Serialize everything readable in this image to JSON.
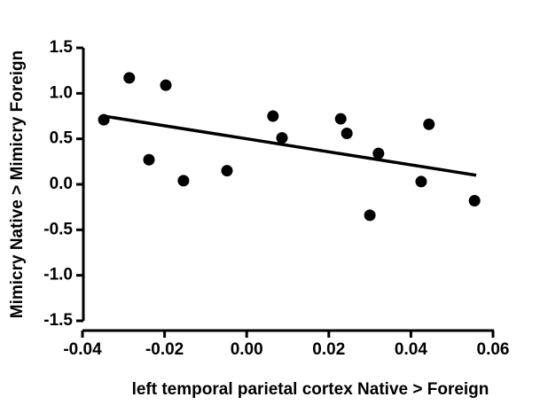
{
  "chart_data": {
    "type": "scatter",
    "xlabel": "left temporal parietal cortex Native > Foreign",
    "ylabel": "Mimicry Native > Mimicry Foreign",
    "x": [
      -0.0348,
      -0.0286,
      -0.0197,
      -0.0238,
      -0.0154,
      -0.0048,
      0.0064,
      0.0086,
      0.0229,
      0.0244,
      0.0321,
      0.03,
      0.0425,
      0.0444,
      0.0555
    ],
    "y": [
      0.71,
      1.17,
      1.09,
      0.27,
      0.04,
      0.15,
      0.75,
      0.51,
      0.72,
      0.56,
      0.34,
      -0.34,
      0.03,
      0.66,
      -0.18
    ],
    "color": "#000000",
    "fit": {
      "x": [
        -0.0348,
        0.0559
      ],
      "y": [
        0.75,
        0.1
      ]
    },
    "xlim": [
      -0.04,
      0.06
    ],
    "xticks": [
      -0.04,
      -0.02,
      {
        "value": 0,
        "label": "0.00"
      },
      0.02,
      0.04,
      0.06
    ],
    "ylim": [
      -1.5,
      1.5
    ],
    "yticks": [
      1.5,
      {
        "value": 1,
        "label": "1.0"
      },
      0.5,
      {
        "value": 0,
        "label": "0.0"
      },
      -0.5,
      {
        "value": -1,
        "label": "-1.0"
      },
      -1.5
    ]
  }
}
